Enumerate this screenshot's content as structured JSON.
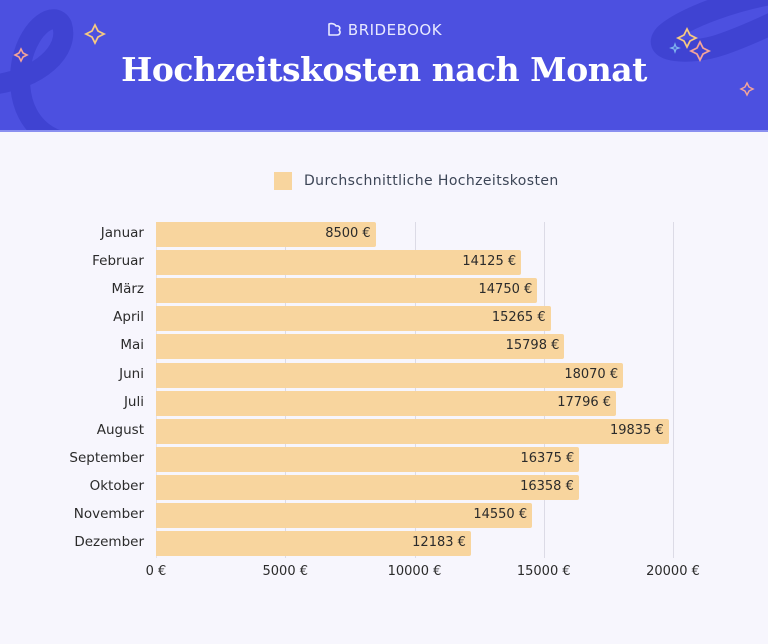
{
  "header": {
    "brand": "BRIDEBOOK",
    "brand_icon": "bridebook-heart-logo-icon",
    "title": "Hochzeitskosten nach Monat",
    "background_color": "#4c50e0"
  },
  "legend": {
    "label": "Durchschnittliche Hochzeitskosten",
    "color": "#f8d59e"
  },
  "chart_data": {
    "type": "bar",
    "orientation": "horizontal",
    "title": "Hochzeitskosten nach Monat",
    "xlabel": "",
    "ylabel": "",
    "categories": [
      "Januar",
      "Februar",
      "März",
      "April",
      "Mai",
      "Juni",
      "Juli",
      "August",
      "September",
      "Oktober",
      "November",
      "Dezember"
    ],
    "series": [
      {
        "name": "Durchschnittliche Hochzeitskosten",
        "color": "#f8d59e",
        "values": [
          8500,
          14125,
          14750,
          15265,
          15798,
          18070,
          17796,
          19835,
          16375,
          16358,
          14550,
          12183
        ]
      }
    ],
    "value_labels": [
      "8500 €",
      "14125 €",
      "14750 €",
      "15265 €",
      "15798 €",
      "18070 €",
      "17796 €",
      "19835 €",
      "16375 €",
      "16358 €",
      "14550 €",
      "12183 €"
    ],
    "xlim": [
      0,
      21500
    ],
    "x_ticks": [
      0,
      5000,
      10000,
      15000,
      20000
    ],
    "x_tick_labels": [
      "0 €",
      "5000 €",
      "10000 €",
      "15000 €",
      "20000 €"
    ],
    "grid": "vertical",
    "legend_position": "top"
  }
}
